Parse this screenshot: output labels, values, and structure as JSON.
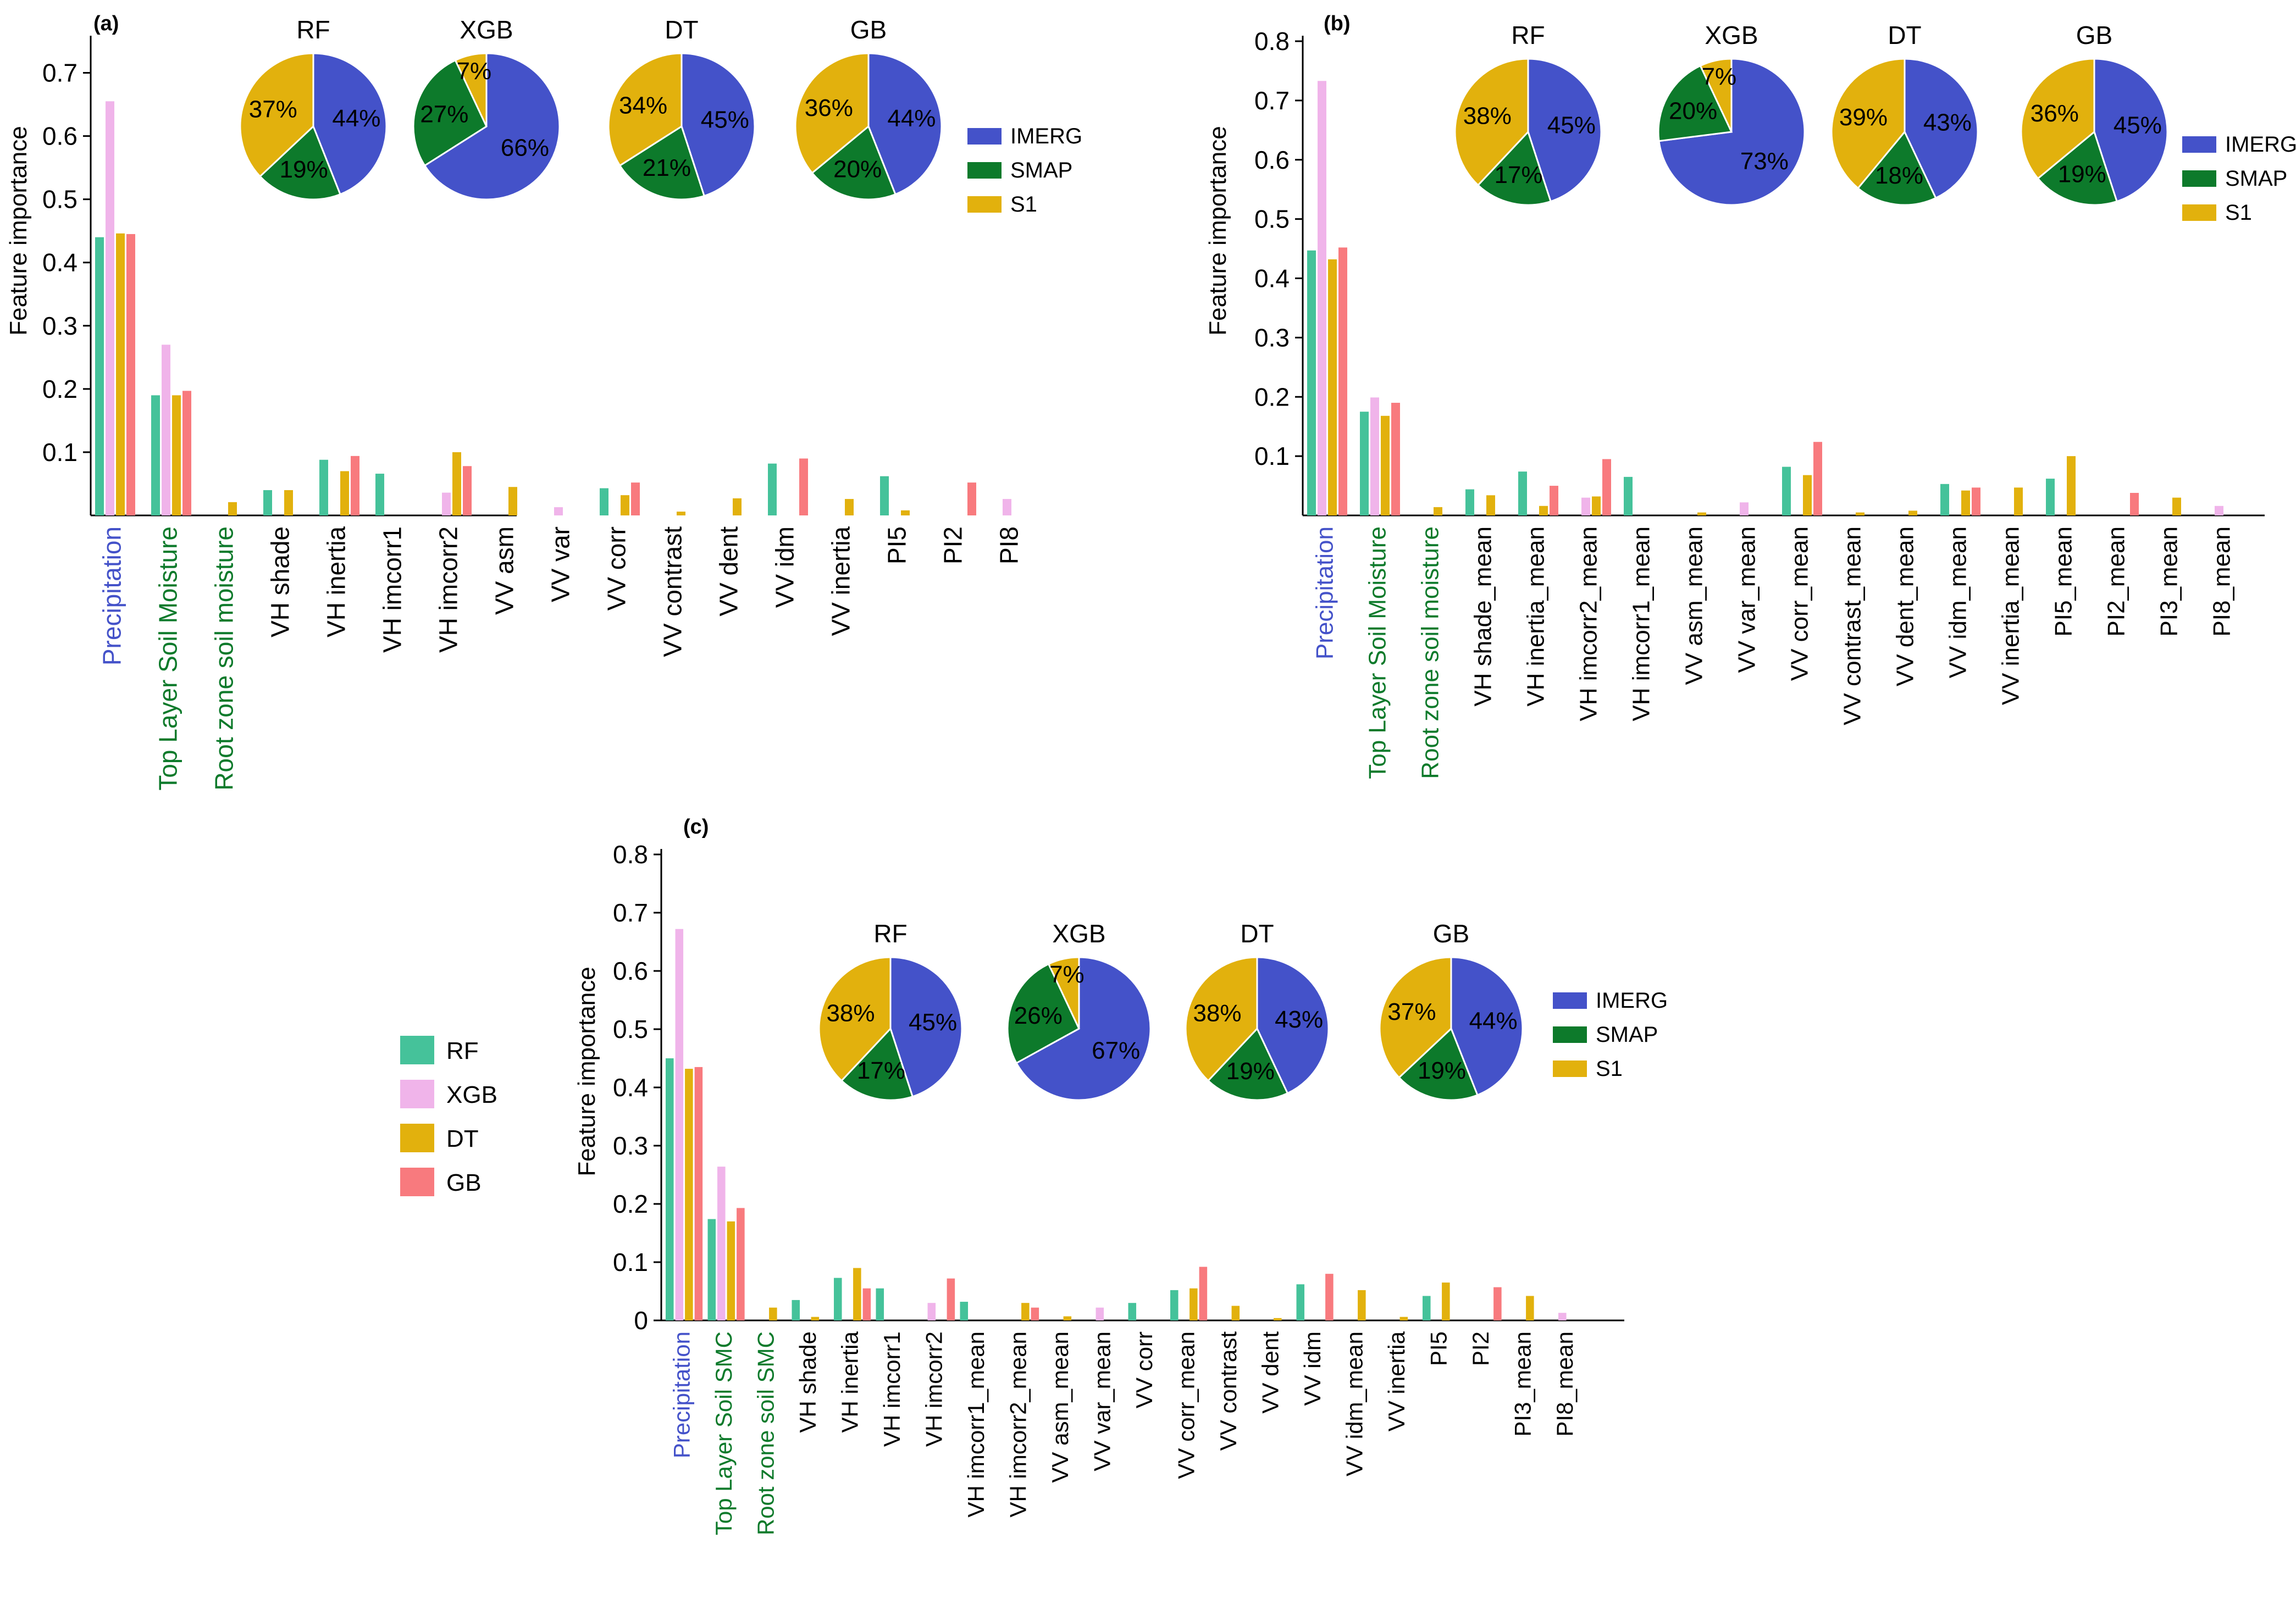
{
  "colors": {
    "RF": "#45c29a",
    "XGB": "#f0b4ea",
    "DT": "#e2b10d",
    "GB": "#f87a7e",
    "IMERG": "#4452c9",
    "SMAP": "#0d7a2b",
    "S1": "#e2b10d",
    "precip_label": "#4452c9",
    "soil_label": "#0d7a2b",
    "axis": "#000000"
  },
  "global_legend": {
    "items": [
      {
        "key": "RF",
        "label": "RF"
      },
      {
        "key": "XGB",
        "label": "XGB"
      },
      {
        "key": "DT",
        "label": "DT"
      },
      {
        "key": "GB",
        "label": "GB"
      }
    ]
  },
  "chart_data": [
    {
      "type": "bar",
      "panel_label": "(a)",
      "ylabel": "Feature importance",
      "ylim": [
        0,
        0.75
      ],
      "ytick_labels": [
        "0.1",
        "0.2",
        "0.3",
        "0.4",
        "0.5",
        "0.6",
        "0.7"
      ],
      "categories": [
        "Precipitation",
        "Top Layer Soil Moisture",
        "Root zone soil moisture",
        "VH shade",
        "VH inertia",
        "VH imcorr1",
        "VH imcorr2",
        "VV asm",
        "VV var",
        "VV corr",
        "VV contrast",
        "VV dent",
        "VV idm",
        "VV inertia",
        "PI5",
        "PI2",
        "PI8"
      ],
      "category_colors": [
        "precip",
        "soil",
        "soil",
        "default",
        "default",
        "default",
        "default",
        "default",
        "default",
        "default",
        "default",
        "default",
        "default",
        "default",
        "default",
        "default",
        "default"
      ],
      "series": [
        {
          "name": "RF",
          "values": [
            0.44,
            0.19,
            0,
            0.04,
            0.088,
            0.066,
            0,
            0,
            0,
            0.043,
            0,
            0,
            0.082,
            0,
            0.062,
            0,
            0
          ]
        },
        {
          "name": "XGB",
          "values": [
            0.655,
            0.27,
            0,
            0,
            0,
            0,
            0.036,
            0,
            0.013,
            0,
            0,
            0,
            0,
            0,
            0,
            0,
            0.026
          ]
        },
        {
          "name": "DT",
          "values": [
            0.446,
            0.19,
            0.021,
            0.04,
            0.07,
            0,
            0.1,
            0.045,
            0,
            0.032,
            0.006,
            0.027,
            0,
            0.026,
            0.008,
            0,
            0
          ]
        },
        {
          "name": "GB",
          "values": [
            0.445,
            0.197,
            0,
            0,
            0.094,
            0,
            0.078,
            0,
            0,
            0.052,
            0,
            0,
            0.09,
            0,
            0,
            0.052,
            0
          ]
        }
      ],
      "pies": [
        {
          "title": "RF",
          "slices": [
            {
              "name": "IMERG",
              "value": 44,
              "label": "44%"
            },
            {
              "name": "SMAP",
              "value": 19,
              "label": "19%"
            },
            {
              "name": "S1",
              "value": 37,
              "label": "37%"
            }
          ]
        },
        {
          "title": "XGB",
          "slices": [
            {
              "name": "IMERG",
              "value": 66,
              "label": "66%"
            },
            {
              "name": "SMAP",
              "value": 27,
              "label": "27%"
            },
            {
              "name": "S1",
              "value": 7,
              "label": "7%"
            }
          ]
        },
        {
          "title": "DT",
          "slices": [
            {
              "name": "IMERG",
              "value": 45,
              "label": "45%"
            },
            {
              "name": "SMAP",
              "value": 21,
              "label": "21%"
            },
            {
              "name": "S1",
              "value": 34,
              "label": "34%"
            }
          ]
        },
        {
          "title": "GB",
          "slices": [
            {
              "name": "IMERG",
              "value": 44,
              "label": "44%"
            },
            {
              "name": "SMAP",
              "value": 20,
              "label": "20%"
            },
            {
              "name": "S1",
              "value": 36,
              "label": "36%"
            }
          ]
        }
      ],
      "pie_legend": [
        "IMERG",
        "SMAP",
        "S1"
      ]
    },
    {
      "type": "bar",
      "panel_label": "(b)",
      "ylabel": "Feature importance",
      "ylim": [
        0,
        0.8
      ],
      "ytick_labels": [
        "0.1",
        "0.2",
        "0.3",
        "0.4",
        "0.5",
        "0.6",
        "0.7",
        "0.8"
      ],
      "categories": [
        "Precipitation",
        "Top Layer Soil Moisture",
        "Root zone soil moisture",
        "VH shade_mean",
        "VH inertia_mean",
        "VH imcorr2_mean",
        "VH imcorr1_mean",
        "VV asm_mean",
        "VV var_mean",
        "VV corr_mean",
        "VV contrast_mean",
        "VV dent_mean",
        "VV idm_mean",
        "VV inertia_mean",
        "PI5_mean",
        "PI2_mean",
        "PI3_mean",
        "PI8_mean"
      ],
      "category_colors": [
        "precip",
        "soil",
        "soil",
        "default",
        "default",
        "default",
        "default",
        "default",
        "default",
        "default",
        "default",
        "default",
        "default",
        "default",
        "default",
        "default",
        "default",
        "default"
      ],
      "series": [
        {
          "name": "RF",
          "values": [
            0.447,
            0.175,
            0,
            0.044,
            0.074,
            0,
            0.065,
            0,
            0,
            0.082,
            0,
            0,
            0.053,
            0,
            0.062,
            0,
            0,
            0
          ]
        },
        {
          "name": "XGB",
          "values": [
            0.733,
            0.199,
            0,
            0,
            0,
            0.03,
            0,
            0,
            0.022,
            0,
            0,
            0,
            0,
            0,
            0,
            0,
            0,
            0.016
          ]
        },
        {
          "name": "DT",
          "values": [
            0.432,
            0.168,
            0.014,
            0.034,
            0.016,
            0.032,
            0,
            0.005,
            0,
            0.068,
            0.005,
            0.008,
            0.042,
            0.047,
            0.1,
            0,
            0.03,
            0
          ]
        },
        {
          "name": "GB",
          "values": [
            0.452,
            0.19,
            0,
            0,
            0.05,
            0.095,
            0,
            0,
            0,
            0.124,
            0,
            0,
            0.047,
            0,
            0,
            0.038,
            0,
            0
          ]
        }
      ],
      "pies": [
        {
          "title": "RF",
          "slices": [
            {
              "name": "IMERG",
              "value": 45,
              "label": "45%"
            },
            {
              "name": "SMAP",
              "value": 17,
              "label": "17%"
            },
            {
              "name": "S1",
              "value": 38,
              "label": "38%"
            }
          ]
        },
        {
          "title": "XGB",
          "slices": [
            {
              "name": "IMERG",
              "value": 73,
              "label": "73%"
            },
            {
              "name": "SMAP",
              "value": 20,
              "label": "20%"
            },
            {
              "name": "S1",
              "value": 7,
              "label": "7%"
            }
          ]
        },
        {
          "title": "DT",
          "slices": [
            {
              "name": "IMERG",
              "value": 43,
              "label": "43%"
            },
            {
              "name": "SMAP",
              "value": 18,
              "label": "18%"
            },
            {
              "name": "S1",
              "value": 39,
              "label": "39%"
            }
          ]
        },
        {
          "title": "GB",
          "slices": [
            {
              "name": "IMERG",
              "value": 45,
              "label": "45%"
            },
            {
              "name": "SMAP",
              "value": 19,
              "label": "19%"
            },
            {
              "name": "S1",
              "value": 36,
              "label": "36%"
            }
          ]
        }
      ],
      "pie_legend": [
        "IMERG",
        "SMAP",
        "S1"
      ]
    },
    {
      "type": "bar",
      "panel_label": "(c)",
      "ylabel": "Feature importance",
      "ylim": [
        0,
        0.8
      ],
      "ytick_labels": [
        "0",
        "0.1",
        "0.2",
        "0.3",
        "0.4",
        "0.5",
        "0.6",
        "0.7",
        "0.8"
      ],
      "categories": [
        "Precipitation",
        "Top Layer Soil SMC",
        "Root zone soil SMC",
        "VH shade",
        "VH inertia",
        "VH imcorr1",
        "VH imcorr2",
        "VH imcorr1_mean",
        "VH imcorr2_mean",
        "VV asm_mean",
        "VV var_mean",
        "VV corr",
        "VV corr_mean",
        "VV contrast",
        "VV dent",
        "VV idm",
        "VV idm_mean",
        "VV inertia",
        "PI5",
        "PI2",
        "PI3_mean",
        "PI8_mean"
      ],
      "category_colors": [
        "precip",
        "soil",
        "soil",
        "default",
        "default",
        "default",
        "default",
        "default",
        "default",
        "default",
        "default",
        "default",
        "default",
        "default",
        "default",
        "default",
        "default",
        "default",
        "default",
        "default",
        "default",
        "default"
      ],
      "series": [
        {
          "name": "RF",
          "values": [
            0.45,
            0.174,
            0,
            0.035,
            0.073,
            0.055,
            0,
            0.032,
            0,
            0,
            0,
            0.03,
            0.052,
            0,
            0,
            0.062,
            0,
            0,
            0.042,
            0,
            0,
            0
          ]
        },
        {
          "name": "XGB",
          "values": [
            0.672,
            0.264,
            0,
            0,
            0,
            0,
            0.03,
            0,
            0,
            0,
            0.022,
            0,
            0,
            0,
            0,
            0,
            0,
            0,
            0,
            0,
            0,
            0.013
          ]
        },
        {
          "name": "DT",
          "values": [
            0.432,
            0.17,
            0.022,
            0.006,
            0.09,
            0,
            0,
            0,
            0.03,
            0.007,
            0,
            0,
            0.055,
            0.025,
            0.004,
            0,
            0.052,
            0.006,
            0.065,
            0,
            0.042,
            0
          ]
        },
        {
          "name": "GB",
          "values": [
            0.435,
            0.193,
            0,
            0,
            0.055,
            0,
            0.072,
            0,
            0.022,
            0,
            0,
            0,
            0.092,
            0,
            0,
            0.08,
            0,
            0,
            0,
            0.057,
            0,
            0
          ]
        }
      ],
      "pies": [
        {
          "title": "RF",
          "slices": [
            {
              "name": "IMERG",
              "value": 45,
              "label": "45%"
            },
            {
              "name": "SMAP",
              "value": 17,
              "label": "17%"
            },
            {
              "name": "S1",
              "value": 38,
              "label": "38%"
            }
          ]
        },
        {
          "title": "XGB",
          "slices": [
            {
              "name": "IMERG",
              "value": 67,
              "label": "67%"
            },
            {
              "name": "SMAP",
              "value": 26,
              "label": "26%"
            },
            {
              "name": "S1",
              "value": 7,
              "label": "7%"
            }
          ]
        },
        {
          "title": "DT",
          "slices": [
            {
              "name": "IMERG",
              "value": 43,
              "label": "43%"
            },
            {
              "name": "SMAP",
              "value": 19,
              "label": "19%"
            },
            {
              "name": "S1",
              "value": 38,
              "label": "38%"
            }
          ]
        },
        {
          "title": "GB",
          "slices": [
            {
              "name": "IMERG",
              "value": 44,
              "label": "44%"
            },
            {
              "name": "SMAP",
              "value": 19,
              "label": "19%"
            },
            {
              "name": "S1",
              "value": 37,
              "label": "37%"
            }
          ]
        }
      ],
      "pie_legend": [
        "IMERG",
        "SMAP",
        "S1"
      ]
    }
  ]
}
